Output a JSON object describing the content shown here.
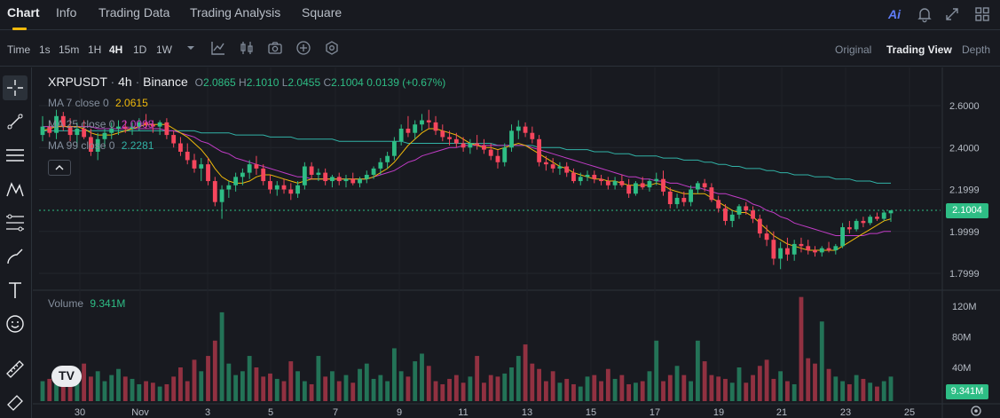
{
  "topnav": {
    "tabs": [
      {
        "label": "Chart",
        "active": true
      },
      {
        "label": "Info"
      },
      {
        "label": "Trading Data"
      },
      {
        "label": "Trading Analysis"
      },
      {
        "label": "Square"
      }
    ],
    "ai_label": "Ai"
  },
  "toolbar": {
    "time_label": "Time",
    "intervals": [
      "1s",
      "15m",
      "1H",
      "4H",
      "1D",
      "1W"
    ],
    "active_interval": "4H",
    "views": [
      "Original",
      "Trading View",
      "Depth"
    ],
    "active_view": "Trading View"
  },
  "legend": {
    "symbol": "XRPUSDT",
    "interval": "4h",
    "exchange": "Binance",
    "open_label": "O",
    "open": "2.0865",
    "high_label": "H",
    "high": "2.1010",
    "low_label": "L",
    "low": "2.0455",
    "close_label": "C",
    "close": "2.1004",
    "change": "0.0139 (+0.67%)",
    "ma7_label": "MA 7 close 0",
    "ma7_value": "2.0615",
    "ma25_label": "MA 25 close 0",
    "ma25_value": "2.0008",
    "ma99_label": "MA 99 close 0",
    "ma99_value": "2.2281",
    "volume_label": "Volume",
    "volume_value": "9.341M"
  },
  "price_axis": {
    "ticks": [
      "2.6000",
      "2.4000",
      "2.1999",
      "1.9999",
      "1.7999"
    ],
    "current_price": "2.1004"
  },
  "volume_axis": {
    "ticks": [
      "120M",
      "80M",
      "40M"
    ],
    "current_volume": "9.341M"
  },
  "time_axis": {
    "ticks": [
      "30",
      "Nov",
      "3",
      "5",
      "7",
      "9",
      "11",
      "13",
      "15",
      "17",
      "19",
      "21",
      "23",
      "25"
    ]
  },
  "colors": {
    "up": "#2ebd85",
    "down": "#f6465d",
    "ma7": "#f0b90b",
    "ma25": "#c13cc6",
    "ma99": "#31b2a6",
    "accent": "#f0b90b"
  },
  "chart_data": {
    "type": "candlestick",
    "title": "XRPUSDT · 4h · Binance",
    "ylim": [
      1.75,
      2.7
    ],
    "candles": [
      {
        "o": 2.46,
        "h": 2.55,
        "l": 2.43,
        "c": 2.5
      },
      {
        "o": 2.5,
        "h": 2.53,
        "l": 2.45,
        "c": 2.47
      },
      {
        "o": 2.47,
        "h": 2.58,
        "l": 2.44,
        "c": 2.55
      },
      {
        "o": 2.55,
        "h": 2.57,
        "l": 2.48,
        "c": 2.5
      },
      {
        "o": 2.5,
        "h": 2.54,
        "l": 2.43,
        "c": 2.46
      },
      {
        "o": 2.46,
        "h": 2.52,
        "l": 2.4,
        "c": 2.49
      },
      {
        "o": 2.49,
        "h": 2.53,
        "l": 2.44,
        "c": 2.45
      },
      {
        "o": 2.45,
        "h": 2.49,
        "l": 2.36,
        "c": 2.38
      },
      {
        "o": 2.38,
        "h": 2.47,
        "l": 2.34,
        "c": 2.44
      },
      {
        "o": 2.44,
        "h": 2.49,
        "l": 2.4,
        "c": 2.47
      },
      {
        "o": 2.47,
        "h": 2.52,
        "l": 2.44,
        "c": 2.49
      },
      {
        "o": 2.49,
        "h": 2.53,
        "l": 2.46,
        "c": 2.5
      },
      {
        "o": 2.5,
        "h": 2.53,
        "l": 2.47,
        "c": 2.49
      },
      {
        "o": 2.49,
        "h": 2.52,
        "l": 2.46,
        "c": 2.5
      },
      {
        "o": 2.5,
        "h": 2.54,
        "l": 2.48,
        "c": 2.52
      },
      {
        "o": 2.52,
        "h": 2.56,
        "l": 2.49,
        "c": 2.51
      },
      {
        "o": 2.51,
        "h": 2.53,
        "l": 2.47,
        "c": 2.5
      },
      {
        "o": 2.5,
        "h": 2.53,
        "l": 2.46,
        "c": 2.52
      },
      {
        "o": 2.52,
        "h": 2.54,
        "l": 2.44,
        "c": 2.46
      },
      {
        "o": 2.46,
        "h": 2.48,
        "l": 2.4,
        "c": 2.42
      },
      {
        "o": 2.42,
        "h": 2.45,
        "l": 2.36,
        "c": 2.38
      },
      {
        "o": 2.38,
        "h": 2.42,
        "l": 2.32,
        "c": 2.34
      },
      {
        "o": 2.34,
        "h": 2.37,
        "l": 2.28,
        "c": 2.3
      },
      {
        "o": 2.3,
        "h": 2.35,
        "l": 2.24,
        "c": 2.32
      },
      {
        "o": 2.32,
        "h": 2.35,
        "l": 2.22,
        "c": 2.24
      },
      {
        "o": 2.24,
        "h": 2.26,
        "l": 2.12,
        "c": 2.14
      },
      {
        "o": 2.14,
        "h": 2.22,
        "l": 2.06,
        "c": 2.2
      },
      {
        "o": 2.2,
        "h": 2.24,
        "l": 2.16,
        "c": 2.22
      },
      {
        "o": 2.22,
        "h": 2.28,
        "l": 2.19,
        "c": 2.26
      },
      {
        "o": 2.26,
        "h": 2.3,
        "l": 2.22,
        "c": 2.28
      },
      {
        "o": 2.28,
        "h": 2.34,
        "l": 2.25,
        "c": 2.32
      },
      {
        "o": 2.32,
        "h": 2.36,
        "l": 2.27,
        "c": 2.3
      },
      {
        "o": 2.3,
        "h": 2.32,
        "l": 2.22,
        "c": 2.24
      },
      {
        "o": 2.24,
        "h": 2.27,
        "l": 2.18,
        "c": 2.2
      },
      {
        "o": 2.2,
        "h": 2.24,
        "l": 2.17,
        "c": 2.22
      },
      {
        "o": 2.22,
        "h": 2.25,
        "l": 2.18,
        "c": 2.2
      },
      {
        "o": 2.2,
        "h": 2.23,
        "l": 2.15,
        "c": 2.18
      },
      {
        "o": 2.18,
        "h": 2.24,
        "l": 2.16,
        "c": 2.22
      },
      {
        "o": 2.22,
        "h": 2.33,
        "l": 2.2,
        "c": 2.31
      },
      {
        "o": 2.31,
        "h": 2.33,
        "l": 2.25,
        "c": 2.27
      },
      {
        "o": 2.27,
        "h": 2.3,
        "l": 2.24,
        "c": 2.28
      },
      {
        "o": 2.28,
        "h": 2.3,
        "l": 2.22,
        "c": 2.24
      },
      {
        "o": 2.24,
        "h": 2.27,
        "l": 2.21,
        "c": 2.26
      },
      {
        "o": 2.26,
        "h": 2.28,
        "l": 2.22,
        "c": 2.24
      },
      {
        "o": 2.24,
        "h": 2.27,
        "l": 2.21,
        "c": 2.25
      },
      {
        "o": 2.25,
        "h": 2.28,
        "l": 2.22,
        "c": 2.23
      },
      {
        "o": 2.23,
        "h": 2.26,
        "l": 2.21,
        "c": 2.25
      },
      {
        "o": 2.25,
        "h": 2.29,
        "l": 2.23,
        "c": 2.27
      },
      {
        "o": 2.27,
        "h": 2.31,
        "l": 2.25,
        "c": 2.3
      },
      {
        "o": 2.3,
        "h": 2.35,
        "l": 2.27,
        "c": 2.33
      },
      {
        "o": 2.33,
        "h": 2.38,
        "l": 2.3,
        "c": 2.36
      },
      {
        "o": 2.36,
        "h": 2.45,
        "l": 2.34,
        "c": 2.43
      },
      {
        "o": 2.43,
        "h": 2.51,
        "l": 2.41,
        "c": 2.49
      },
      {
        "o": 2.49,
        "h": 2.55,
        "l": 2.45,
        "c": 2.47
      },
      {
        "o": 2.47,
        "h": 2.53,
        "l": 2.44,
        "c": 2.51
      },
      {
        "o": 2.51,
        "h": 2.56,
        "l": 2.48,
        "c": 2.53
      },
      {
        "o": 2.53,
        "h": 2.58,
        "l": 2.49,
        "c": 2.52
      },
      {
        "o": 2.52,
        "h": 2.55,
        "l": 2.46,
        "c": 2.48
      },
      {
        "o": 2.48,
        "h": 2.51,
        "l": 2.43,
        "c": 2.45
      },
      {
        "o": 2.45,
        "h": 2.48,
        "l": 2.41,
        "c": 2.44
      },
      {
        "o": 2.44,
        "h": 2.47,
        "l": 2.4,
        "c": 2.42
      },
      {
        "o": 2.42,
        "h": 2.45,
        "l": 2.38,
        "c": 2.4
      },
      {
        "o": 2.4,
        "h": 2.44,
        "l": 2.37,
        "c": 2.42
      },
      {
        "o": 2.42,
        "h": 2.46,
        "l": 2.39,
        "c": 2.41
      },
      {
        "o": 2.41,
        "h": 2.44,
        "l": 2.37,
        "c": 2.39
      },
      {
        "o": 2.39,
        "h": 2.42,
        "l": 2.34,
        "c": 2.36
      },
      {
        "o": 2.36,
        "h": 2.39,
        "l": 2.3,
        "c": 2.33
      },
      {
        "o": 2.33,
        "h": 2.42,
        "l": 2.31,
        "c": 2.4
      },
      {
        "o": 2.4,
        "h": 2.51,
        "l": 2.38,
        "c": 2.48
      },
      {
        "o": 2.48,
        "h": 2.53,
        "l": 2.44,
        "c": 2.5
      },
      {
        "o": 2.5,
        "h": 2.52,
        "l": 2.45,
        "c": 2.47
      },
      {
        "o": 2.47,
        "h": 2.5,
        "l": 2.42,
        "c": 2.44
      },
      {
        "o": 2.44,
        "h": 2.46,
        "l": 2.31,
        "c": 2.33
      },
      {
        "o": 2.33,
        "h": 2.36,
        "l": 2.29,
        "c": 2.32
      },
      {
        "o": 2.32,
        "h": 2.35,
        "l": 2.28,
        "c": 2.3
      },
      {
        "o": 2.3,
        "h": 2.33,
        "l": 2.27,
        "c": 2.31
      },
      {
        "o": 2.31,
        "h": 2.33,
        "l": 2.26,
        "c": 2.28
      },
      {
        "o": 2.28,
        "h": 2.3,
        "l": 2.23,
        "c": 2.24
      },
      {
        "o": 2.24,
        "h": 2.28,
        "l": 2.22,
        "c": 2.26
      },
      {
        "o": 2.26,
        "h": 2.29,
        "l": 2.24,
        "c": 2.27
      },
      {
        "o": 2.27,
        "h": 2.29,
        "l": 2.23,
        "c": 2.25
      },
      {
        "o": 2.25,
        "h": 2.27,
        "l": 2.22,
        "c": 2.24
      },
      {
        "o": 2.24,
        "h": 2.26,
        "l": 2.2,
        "c": 2.22
      },
      {
        "o": 2.22,
        "h": 2.26,
        "l": 2.2,
        "c": 2.24
      },
      {
        "o": 2.24,
        "h": 2.27,
        "l": 2.21,
        "c": 2.22
      },
      {
        "o": 2.22,
        "h": 2.25,
        "l": 2.16,
        "c": 2.18
      },
      {
        "o": 2.18,
        "h": 2.24,
        "l": 2.17,
        "c": 2.23
      },
      {
        "o": 2.23,
        "h": 2.26,
        "l": 2.2,
        "c": 2.21
      },
      {
        "o": 2.21,
        "h": 2.25,
        "l": 2.19,
        "c": 2.24
      },
      {
        "o": 2.24,
        "h": 2.28,
        "l": 2.22,
        "c": 2.25
      },
      {
        "o": 2.25,
        "h": 2.29,
        "l": 2.17,
        "c": 2.19
      },
      {
        "o": 2.19,
        "h": 2.21,
        "l": 2.11,
        "c": 2.13
      },
      {
        "o": 2.13,
        "h": 2.18,
        "l": 2.11,
        "c": 2.16
      },
      {
        "o": 2.16,
        "h": 2.19,
        "l": 2.12,
        "c": 2.14
      },
      {
        "o": 2.14,
        "h": 2.22,
        "l": 2.12,
        "c": 2.2
      },
      {
        "o": 2.2,
        "h": 2.24,
        "l": 2.18,
        "c": 2.23
      },
      {
        "o": 2.23,
        "h": 2.25,
        "l": 2.19,
        "c": 2.21
      },
      {
        "o": 2.21,
        "h": 2.23,
        "l": 2.14,
        "c": 2.15
      },
      {
        "o": 2.15,
        "h": 2.17,
        "l": 2.09,
        "c": 2.11
      },
      {
        "o": 2.11,
        "h": 2.13,
        "l": 2.03,
        "c": 2.05
      },
      {
        "o": 2.05,
        "h": 2.1,
        "l": 2.02,
        "c": 2.08
      },
      {
        "o": 2.08,
        "h": 2.13,
        "l": 2.06,
        "c": 2.12
      },
      {
        "o": 2.12,
        "h": 2.14,
        "l": 2.08,
        "c": 2.1
      },
      {
        "o": 2.1,
        "h": 2.12,
        "l": 2.04,
        "c": 2.06
      },
      {
        "o": 2.06,
        "h": 2.08,
        "l": 1.97,
        "c": 1.99
      },
      {
        "o": 1.99,
        "h": 2.03,
        "l": 1.93,
        "c": 1.96
      },
      {
        "o": 1.96,
        "h": 2.0,
        "l": 1.84,
        "c": 1.87
      },
      {
        "o": 1.87,
        "h": 1.95,
        "l": 1.82,
        "c": 1.92
      },
      {
        "o": 1.92,
        "h": 1.97,
        "l": 1.86,
        "c": 1.89
      },
      {
        "o": 1.89,
        "h": 1.96,
        "l": 1.86,
        "c": 1.94
      },
      {
        "o": 1.94,
        "h": 1.97,
        "l": 1.9,
        "c": 1.93
      },
      {
        "o": 1.93,
        "h": 1.96,
        "l": 1.89,
        "c": 1.91
      },
      {
        "o": 1.91,
        "h": 1.93,
        "l": 1.88,
        "c": 1.9
      },
      {
        "o": 1.9,
        "h": 1.93,
        "l": 1.88,
        "c": 1.92
      },
      {
        "o": 1.92,
        "h": 1.95,
        "l": 1.9,
        "c": 1.91
      },
      {
        "o": 1.91,
        "h": 1.94,
        "l": 1.89,
        "c": 1.93
      },
      {
        "o": 1.93,
        "h": 2.04,
        "l": 1.92,
        "c": 2.02
      },
      {
        "o": 2.02,
        "h": 2.05,
        "l": 1.99,
        "c": 2.01
      },
      {
        "o": 2.01,
        "h": 2.06,
        "l": 2.0,
        "c": 2.05
      },
      {
        "o": 2.05,
        "h": 2.07,
        "l": 2.02,
        "c": 2.04
      },
      {
        "o": 2.04,
        "h": 2.08,
        "l": 2.03,
        "c": 2.07
      },
      {
        "o": 2.07,
        "h": 2.09,
        "l": 2.05,
        "c": 2.06
      },
      {
        "o": 2.06,
        "h": 2.1,
        "l": 2.05,
        "c": 2.09
      },
      {
        "o": 2.0865,
        "h": 2.101,
        "l": 2.0455,
        "c": 2.1004
      }
    ],
    "volumes_m": [
      22,
      25,
      18,
      16,
      30,
      20,
      45,
      28,
      35,
      22,
      30,
      38,
      28,
      25,
      18,
      22,
      20,
      15,
      18,
      28,
      40,
      22,
      50,
      35,
      55,
      75,
      112,
      45,
      30,
      35,
      55,
      40,
      28,
      32,
      25,
      22,
      48,
      35,
      22,
      18,
      55,
      28,
      35,
      22,
      30,
      20,
      38,
      45,
      25,
      30,
      22,
      65,
      35,
      28,
      48,
      58,
      42,
      22,
      18,
      25,
      30,
      20,
      28,
      55,
      20,
      30,
      28,
      32,
      40,
      55,
      70,
      45,
      38,
      22,
      35,
      20,
      25,
      18,
      15,
      28,
      30,
      22,
      38,
      25,
      30,
      18,
      20,
      22,
      35,
      75,
      22,
      30,
      42,
      30,
      22,
      75,
      48,
      30,
      28,
      25,
      20,
      40,
      20,
      30,
      42,
      50,
      25,
      35,
      22,
      18,
      132,
      52,
      45,
      100,
      38,
      28,
      22,
      18,
      30,
      25,
      20,
      15,
      22,
      28,
      18,
      25,
      20,
      15,
      10
    ],
    "ma7": [
      2.48,
      2.49,
      2.5,
      2.5,
      2.5,
      2.5,
      2.49,
      2.47,
      2.46,
      2.46,
      2.46,
      2.47,
      2.48,
      2.49,
      2.5,
      2.51,
      2.51,
      2.51,
      2.51,
      2.49,
      2.47,
      2.45,
      2.42,
      2.39,
      2.35,
      2.3,
      2.26,
      2.24,
      2.23,
      2.23,
      2.24,
      2.26,
      2.27,
      2.27,
      2.26,
      2.25,
      2.24,
      2.23,
      2.24,
      2.25,
      2.25,
      2.25,
      2.25,
      2.25,
      2.25,
      2.25,
      2.25,
      2.25,
      2.26,
      2.28,
      2.3,
      2.33,
      2.37,
      2.41,
      2.44,
      2.47,
      2.49,
      2.49,
      2.48,
      2.47,
      2.46,
      2.44,
      2.42,
      2.41,
      2.4,
      2.4,
      2.39,
      2.4,
      2.41,
      2.42,
      2.41,
      2.39,
      2.37,
      2.35,
      2.33,
      2.31,
      2.3,
      2.28,
      2.27,
      2.26,
      2.25,
      2.25,
      2.24,
      2.24,
      2.23,
      2.22,
      2.22,
      2.22,
      2.22,
      2.23,
      2.22,
      2.2,
      2.19,
      2.18,
      2.18,
      2.18,
      2.18,
      2.16,
      2.14,
      2.12,
      2.1,
      2.09,
      2.09,
      2.07,
      2.04,
      2.01,
      1.98,
      1.96,
      1.94,
      1.93,
      1.92,
      1.91,
      1.91,
      1.91,
      1.91,
      1.91,
      1.93,
      1.95,
      1.97,
      1.99,
      2.01,
      2.03,
      2.05,
      2.06
    ],
    "ma25": [
      2.5,
      2.5,
      2.5,
      2.5,
      2.5,
      2.5,
      2.5,
      2.5,
      2.49,
      2.49,
      2.49,
      2.49,
      2.49,
      2.49,
      2.49,
      2.49,
      2.49,
      2.49,
      2.48,
      2.48,
      2.47,
      2.46,
      2.45,
      2.43,
      2.42,
      2.4,
      2.38,
      2.37,
      2.35,
      2.34,
      2.33,
      2.32,
      2.31,
      2.3,
      2.29,
      2.28,
      2.27,
      2.26,
      2.26,
      2.25,
      2.25,
      2.25,
      2.25,
      2.25,
      2.25,
      2.25,
      2.25,
      2.25,
      2.26,
      2.27,
      2.28,
      2.29,
      2.31,
      2.33,
      2.34,
      2.36,
      2.37,
      2.38,
      2.39,
      2.4,
      2.4,
      2.41,
      2.41,
      2.41,
      2.41,
      2.41,
      2.41,
      2.41,
      2.41,
      2.41,
      2.41,
      2.4,
      2.39,
      2.38,
      2.37,
      2.36,
      2.35,
      2.34,
      2.33,
      2.32,
      2.31,
      2.3,
      2.29,
      2.28,
      2.27,
      2.26,
      2.26,
      2.25,
      2.25,
      2.24,
      2.24,
      2.23,
      2.23,
      2.22,
      2.21,
      2.21,
      2.2,
      2.19,
      2.18,
      2.18,
      2.17,
      2.16,
      2.15,
      2.13,
      2.12,
      2.1,
      2.09,
      2.07,
      2.06,
      2.04,
      2.03,
      2.02,
      2.01,
      2.0,
      1.99,
      1.98,
      1.98,
      1.98,
      1.98,
      1.98,
      1.99,
      1.99,
      2.0,
      2.0
    ],
    "ma99": [
      2.48,
      2.48,
      2.48,
      2.48,
      2.48,
      2.48,
      2.48,
      2.48,
      2.48,
      2.48,
      2.48,
      2.48,
      2.48,
      2.48,
      2.48,
      2.48,
      2.48,
      2.48,
      2.48,
      2.48,
      2.48,
      2.48,
      2.48,
      2.47,
      2.47,
      2.47,
      2.47,
      2.47,
      2.46,
      2.46,
      2.46,
      2.46,
      2.46,
      2.45,
      2.45,
      2.45,
      2.45,
      2.44,
      2.44,
      2.44,
      2.44,
      2.44,
      2.44,
      2.43,
      2.43,
      2.43,
      2.43,
      2.43,
      2.43,
      2.43,
      2.43,
      2.43,
      2.43,
      2.42,
      2.42,
      2.42,
      2.42,
      2.42,
      2.42,
      2.42,
      2.42,
      2.42,
      2.42,
      2.42,
      2.42,
      2.42,
      2.41,
      2.41,
      2.41,
      2.41,
      2.41,
      2.41,
      2.4,
      2.4,
      2.4,
      2.4,
      2.39,
      2.39,
      2.39,
      2.39,
      2.38,
      2.38,
      2.38,
      2.37,
      2.37,
      2.37,
      2.36,
      2.36,
      2.36,
      2.36,
      2.35,
      2.35,
      2.35,
      2.34,
      2.34,
      2.34,
      2.33,
      2.33,
      2.32,
      2.32,
      2.31,
      2.31,
      2.3,
      2.3,
      2.3,
      2.29,
      2.29,
      2.28,
      2.28,
      2.27,
      2.27,
      2.27,
      2.26,
      2.26,
      2.26,
      2.25,
      2.25,
      2.25,
      2.24,
      2.24,
      2.24,
      2.23,
      2.23,
      2.23
    ]
  }
}
